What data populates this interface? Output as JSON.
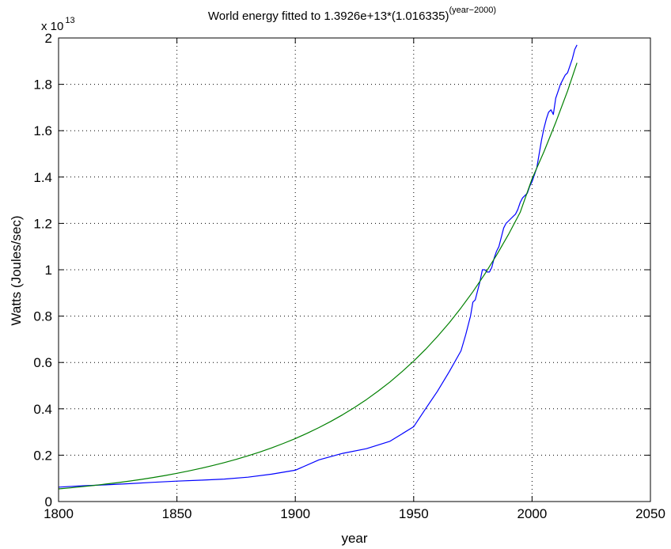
{
  "chart_data": {
    "type": "line",
    "title_main": "World energy fitted to 1.3926e+13*(1.016335)",
    "title_sup": "(year−2000)",
    "xlabel": "year",
    "ylabel": "Watts (Joules/sec)",
    "multiplier_base": "x 10",
    "multiplier_exp": "13",
    "xlim": [
      1800,
      2050
    ],
    "ylim": [
      0,
      2
    ],
    "xticks": [
      1800,
      1850,
      1900,
      1950,
      2000,
      2050
    ],
    "yticks": [
      0,
      0.2,
      0.4,
      0.6,
      0.8,
      1,
      1.2,
      1.4,
      1.6,
      1.8,
      2
    ],
    "grid": true,
    "series": [
      {
        "color": "#0000ff",
        "x": [
          1800,
          1810,
          1820,
          1830,
          1840,
          1850,
          1860,
          1870,
          1880,
          1890,
          1900,
          1910,
          1920,
          1930,
          1940,
          1950,
          1955,
          1960,
          1965,
          1970,
          1972,
          1974,
          1975,
          1976,
          1978,
          1979,
          1980,
          1981,
          1982,
          1983,
          1984,
          1985,
          1986,
          1987,
          1988,
          1989,
          1990,
          1991,
          1992,
          1993,
          1994,
          1995,
          1996,
          1997,
          1998,
          1999,
          2000,
          2001,
          2002,
          2003,
          2004,
          2005,
          2006,
          2007,
          2008,
          2009,
          2010,
          2011,
          2012,
          2013,
          2014,
          2015,
          2016,
          2017,
          2018,
          2019
        ],
        "y": [
          0.062,
          0.068,
          0.072,
          0.077,
          0.083,
          0.088,
          0.092,
          0.097,
          0.105,
          0.118,
          0.135,
          0.18,
          0.208,
          0.228,
          0.26,
          0.323,
          0.4,
          0.475,
          0.56,
          0.65,
          0.72,
          0.8,
          0.86,
          0.87,
          0.95,
          1.0,
          1.0,
          0.99,
          0.99,
          1.01,
          1.05,
          1.08,
          1.1,
          1.14,
          1.18,
          1.2,
          1.21,
          1.22,
          1.23,
          1.24,
          1.26,
          1.29,
          1.31,
          1.32,
          1.33,
          1.36,
          1.38,
          1.41,
          1.44,
          1.5,
          1.56,
          1.61,
          1.65,
          1.68,
          1.69,
          1.67,
          1.74,
          1.77,
          1.8,
          1.82,
          1.84,
          1.85,
          1.88,
          1.91,
          1.95,
          1.97
        ]
      },
      {
        "color": "#008000",
        "x": [
          1800,
          1805,
          1810,
          1815,
          1820,
          1825,
          1830,
          1835,
          1840,
          1845,
          1850,
          1855,
          1860,
          1865,
          1870,
          1875,
          1880,
          1885,
          1890,
          1895,
          1900,
          1905,
          1910,
          1915,
          1920,
          1925,
          1930,
          1935,
          1940,
          1945,
          1950,
          1955,
          1960,
          1965,
          1970,
          1975,
          1980,
          1985,
          1990,
          1995,
          2000,
          2005,
          2010,
          2015,
          2019
        ],
        "y": [
          0.0546,
          0.0592,
          0.0641,
          0.0695,
          0.0753,
          0.0815,
          0.0884,
          0.0957,
          0.1037,
          0.1124,
          0.1218,
          0.132,
          0.143,
          0.1549,
          0.1679,
          0.1819,
          0.1971,
          0.2136,
          0.2314,
          0.2507,
          0.2717,
          0.2944,
          0.319,
          0.3456,
          0.3745,
          0.4058,
          0.4397,
          0.4764,
          0.5162,
          0.5593,
          0.606,
          0.6567,
          0.7115,
          0.771,
          0.8354,
          0.9052,
          0.9808,
          1.0627,
          1.1515,
          1.2477,
          1.3926,
          1.5088,
          1.635,
          1.7716,
          1.8927
        ]
      }
    ]
  }
}
